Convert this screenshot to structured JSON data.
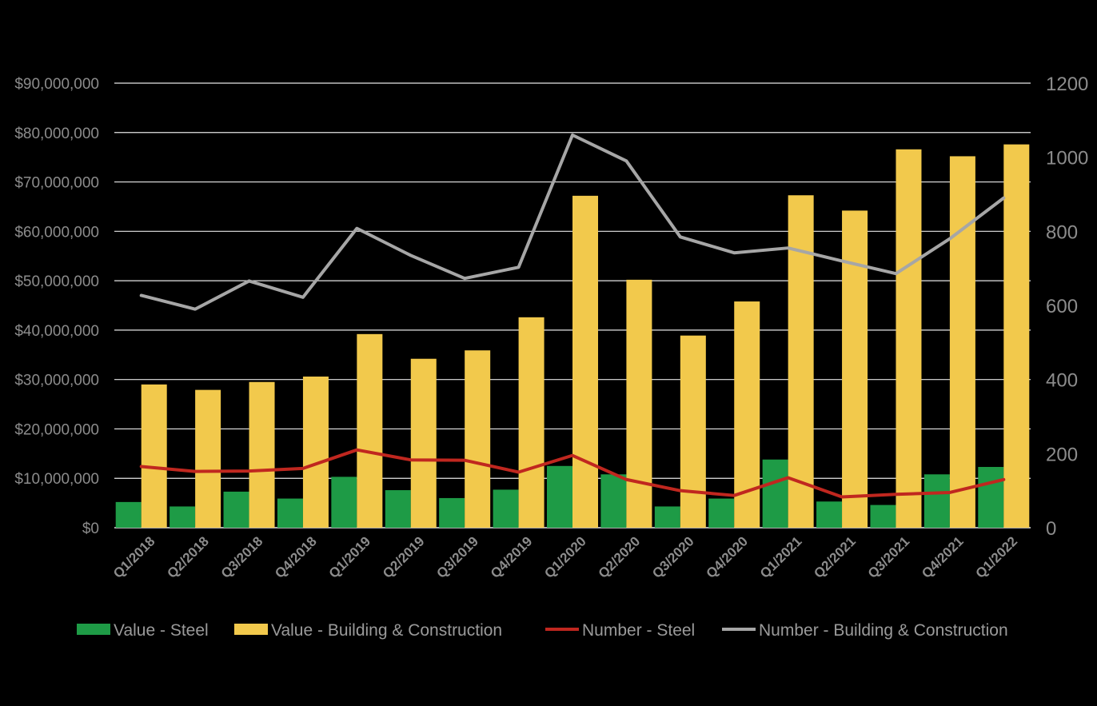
{
  "chart_data": {
    "type": "bar+line",
    "title": "",
    "categories": [
      "Q1/2018",
      "Q2/2018",
      "Q3/2018",
      "Q4/2018",
      "Q1/2019",
      "Q2/2019",
      "Q3/2019",
      "Q4/2019",
      "Q1/2020",
      "Q2/2020",
      "Q3/2020",
      "Q4/2020",
      "Q1/2021",
      "Q2/2021",
      "Q3/2021",
      "Q4/2021",
      "Q1/2022"
    ],
    "left_axis": {
      "ylim": [
        0,
        90000000
      ],
      "ticks": [
        0,
        10000000,
        20000000,
        30000000,
        40000000,
        50000000,
        60000000,
        70000000,
        80000000,
        90000000
      ],
      "tick_labels": [
        "$0",
        "$10,000,000",
        "$20,000,000",
        "$30,000,000",
        "$40,000,000",
        "$50,000,000",
        "$60,000,000",
        "$70,000,000",
        "$80,000,000",
        "$90,000,000"
      ]
    },
    "right_axis": {
      "ylim": [
        0,
        1200
      ],
      "ticks": [
        0,
        200,
        400,
        600,
        800,
        1000,
        1200
      ],
      "tick_labels": [
        "0",
        "200",
        "400",
        "600",
        "800",
        "1000",
        "1200"
      ]
    },
    "series": [
      {
        "name": "Value - Steel",
        "kind": "bar",
        "axis": "left",
        "color": "#1e9b46",
        "values": [
          5200000,
          4300000,
          7300000,
          5900000,
          10300000,
          7600000,
          6000000,
          7700000,
          12500000,
          10800000,
          4300000,
          5900000,
          13800000,
          5300000,
          4600000,
          10800000,
          12300000
        ]
      },
      {
        "name": "Value - Building & Construction",
        "kind": "bar",
        "axis": "left",
        "color": "#f2c94c",
        "values": [
          29000000,
          27900000,
          29500000,
          30600000,
          39200000,
          34200000,
          35900000,
          42600000,
          67200000,
          50200000,
          38900000,
          45800000,
          67300000,
          64200000,
          76600000,
          75200000,
          77600000
        ]
      },
      {
        "name": "Number - Steel",
        "kind": "line",
        "axis": "right",
        "color": "#c0271f",
        "values": [
          165,
          152,
          153,
          160,
          210,
          183,
          182,
          150,
          195,
          130,
          100,
          87,
          135,
          83,
          90,
          95,
          130
        ]
      },
      {
        "name": "Number - Building & Construction",
        "kind": "line",
        "axis": "right",
        "color": "#a6a6a6",
        "values": [
          627,
          590,
          666,
          622,
          808,
          735,
          673,
          703,
          1060,
          990,
          785,
          742,
          755,
          720,
          686,
          780,
          890
        ]
      }
    ],
    "legend": [
      "Value - Steel",
      "Value - Building & Construction",
      "Number - Steel",
      "Number - Building & Construction"
    ],
    "legend_position": "bottom",
    "grid": true
  }
}
